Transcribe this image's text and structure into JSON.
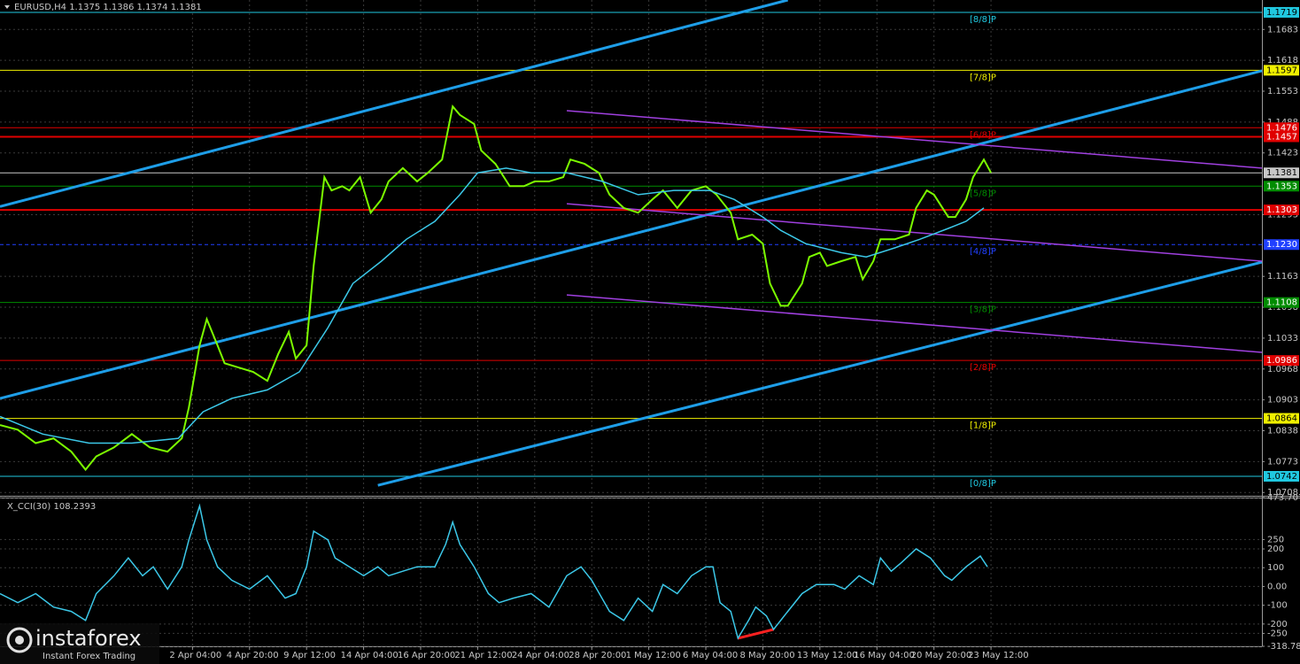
{
  "chart_data": [
    {
      "type": "line",
      "title": "EURUSD,H4  1.1375 1.1386 1.1374 1.1381",
      "xlim": [
        0,
        354
      ],
      "ylim": [
        1.0701,
        1.1745
      ],
      "grid": true,
      "xticks": [
        {
          "value": 54,
          "label": "2 Apr 04:00"
        },
        {
          "value": 70,
          "label": "4 Apr 20:00"
        },
        {
          "value": 86,
          "label": "9 Apr 12:00"
        },
        {
          "value": 102,
          "label": "14 Apr 04:00"
        },
        {
          "value": 118,
          "label": "16 Apr 20:00"
        },
        {
          "value": 134,
          "label": "21 Apr 12:00"
        },
        {
          "value": 150,
          "label": "24 Apr 04:00"
        },
        {
          "value": 166,
          "label": "28 Apr 20:00"
        },
        {
          "value": 182,
          "label": "1 May 12:00"
        },
        {
          "value": 198,
          "label": "6 May 04:00"
        },
        {
          "value": 214,
          "label": "8 May 20:00"
        },
        {
          "value": 230,
          "label": "13 May 12:00"
        },
        {
          "value": 246,
          "label": "16 May 04:00"
        },
        {
          "value": 262,
          "label": "20 May 20:00"
        },
        {
          "value": 278,
          "label": "23 May 12:00"
        }
      ],
      "yticks": [
        1.1683,
        1.1618,
        1.1553,
        1.1488,
        1.1423,
        1.1293,
        1.1163,
        1.1098,
        1.1033,
        1.0968,
        1.0903,
        1.0838,
        1.0773,
        1.0708
      ],
      "series": [
        {
          "color": "#7cfc00",
          "x": [
            0,
            5,
            10,
            15,
            20,
            24,
            27,
            32,
            37,
            42,
            47,
            51,
            53,
            56,
            58,
            61,
            63,
            67,
            71,
            75,
            78,
            81,
            83,
            86,
            88,
            91,
            93,
            96,
            98,
            101,
            104,
            107,
            109,
            113,
            117,
            120,
            124,
            127,
            129,
            133,
            135,
            139,
            143,
            147,
            150,
            154,
            158,
            160,
            164,
            168,
            171,
            175,
            179,
            183,
            186,
            190,
            194,
            198,
            201,
            205,
            207,
            211,
            214,
            216,
            219,
            221,
            225,
            227,
            230,
            232,
            236,
            240,
            242,
            245,
            247,
            251,
            255,
            257,
            260,
            262,
            266,
            268,
            271,
            273,
            276,
            278
          ],
          "values": [
            1.085,
            1.084,
            1.0812,
            1.0822,
            1.0794,
            1.0756,
            1.0784,
            1.0803,
            1.0831,
            1.0803,
            1.0794,
            1.0822,
            1.0887,
            1.1018,
            1.1073,
            1.1018,
            1.098,
            1.0971,
            1.0962,
            1.0943,
            1.0999,
            1.1046,
            1.099,
            1.1018,
            1.1185,
            1.1372,
            1.1344,
            1.1353,
            1.1344,
            1.1372,
            1.1297,
            1.1325,
            1.1363,
            1.1391,
            1.1363,
            1.1381,
            1.1409,
            1.1521,
            1.1503,
            1.1484,
            1.1428,
            1.14,
            1.1353,
            1.1353,
            1.1363,
            1.1363,
            1.1372,
            1.1409,
            1.14,
            1.1381,
            1.1335,
            1.1307,
            1.1297,
            1.1325,
            1.1344,
            1.1307,
            1.1344,
            1.1353,
            1.1335,
            1.1297,
            1.1241,
            1.1251,
            1.1232,
            1.1148,
            1.1101,
            1.1101,
            1.1148,
            1.1204,
            1.1213,
            1.1185,
            1.1195,
            1.1204,
            1.1157,
            1.1195,
            1.1241,
            1.1241,
            1.1251,
            1.1307,
            1.1344,
            1.1335,
            1.1288,
            1.1288,
            1.1325,
            1.1372,
            1.1409,
            1.1381
          ]
        },
        {
          "color": "#3cc8e8",
          "x": [
            0,
            12,
            25,
            37,
            50,
            57,
            65,
            75,
            84,
            92,
            99,
            107,
            114,
            122,
            129,
            134,
            142,
            149,
            159,
            169,
            179,
            189,
            199,
            206,
            214,
            219,
            226,
            236,
            243,
            251,
            258,
            266,
            271,
            276
          ],
          "values": [
            1.0868,
            1.0831,
            1.0812,
            1.0812,
            1.0822,
            1.0878,
            1.0906,
            1.0924,
            1.0962,
            1.1055,
            1.1148,
            1.1195,
            1.1241,
            1.1279,
            1.1335,
            1.1381,
            1.1391,
            1.1381,
            1.1381,
            1.1363,
            1.1335,
            1.1344,
            1.1344,
            1.1325,
            1.1288,
            1.126,
            1.1232,
            1.1213,
            1.1204,
            1.1223,
            1.1241,
            1.1264,
            1.1279,
            1.1307
          ]
        }
      ],
      "trendlines": [
        {
          "color": "#1e9ee8",
          "x": [
            0,
            221
          ],
          "y": [
            1.131,
            1.1745
          ]
        },
        {
          "color": "#1e9ee8",
          "x": [
            0,
            354
          ],
          "y": [
            1.0906,
            1.1596
          ]
        },
        {
          "color": "#1e9ee8",
          "x": [
            106,
            354
          ],
          "y": [
            1.0723,
            1.1193
          ]
        },
        {
          "color": "#a040e0",
          "x": [
            159,
            354
          ],
          "y": [
            1.1512,
            1.1391
          ]
        },
        {
          "color": "#a040e0",
          "x": [
            159,
            354
          ],
          "y": [
            1.1316,
            1.1195
          ]
        },
        {
          "color": "#a040e0",
          "x": [
            159,
            354
          ],
          "y": [
            1.1124,
            1.1003
          ]
        }
      ],
      "levels": [
        {
          "name": "[8/8]P",
          "value": 1.1719,
          "value_label": "1.1719",
          "color": "#20c8e0",
          "style": "solid"
        },
        {
          "name": "[7/8]P",
          "value": 1.1597,
          "value_label": "1.1597",
          "color": "#f0f000",
          "style": "solid"
        },
        {
          "name": "[6/8]P",
          "value": 1.1476,
          "value_label": "1.1476",
          "color": "#e00000",
          "style": "solid"
        },
        {
          "value": 1.1457,
          "value_label": "1.1457",
          "color": "#e00000",
          "style": "thick"
        },
        {
          "value": 1.1381,
          "value_label": "1.1381",
          "color": "#c8c8c8",
          "style": "solid"
        },
        {
          "name": "[5/8]P",
          "value": 1.1353,
          "value_label": "1.1353",
          "color": "#008c00",
          "style": "solid"
        },
        {
          "value": 1.1303,
          "value_label": "1.1303",
          "color": "#e00000",
          "style": "thick"
        },
        {
          "name": "[4/8]P",
          "value": 1.123,
          "value_label": "1.1230",
          "color": "#2040ff",
          "style": "dashed"
        },
        {
          "name": "[3/8]P",
          "value": 1.1108,
          "value_label": "1.1108",
          "color": "#008c00",
          "style": "solid"
        },
        {
          "name": "[2/8]P",
          "value": 1.0986,
          "value_label": "1.0986",
          "color": "#e00000",
          "style": "solid"
        },
        {
          "name": "[1/8]P",
          "value": 1.0864,
          "value_label": "1.0864",
          "color": "#f0f000",
          "style": "solid"
        },
        {
          "name": "[0/8]P",
          "value": 1.0742,
          "value_label": "1.0742",
          "color": "#20c8e0",
          "style": "solid"
        }
      ]
    },
    {
      "type": "line",
      "title": "X_CCI(30) 108.2393",
      "xlim": [
        0,
        354
      ],
      "ylim": [
        -318.786,
        473.707
      ],
      "grid": true,
      "yticks": [
        473.707,
        250,
        200,
        100,
        {
          "value": 0,
          "label": "0.00"
        },
        -100,
        -200,
        -250,
        -318.786
      ],
      "series": [
        {
          "color": "#3cc8e8",
          "x": [
            0,
            5,
            10,
            15,
            20,
            24,
            27,
            32,
            36,
            40,
            43,
            47,
            51,
            53,
            56,
            58,
            61,
            65,
            70,
            75,
            80,
            83,
            86,
            88,
            92,
            94,
            98,
            102,
            106,
            109,
            113,
            117,
            122,
            125,
            127,
            129,
            133,
            137,
            140,
            144,
            149,
            154,
            159,
            163,
            166,
            171,
            175,
            179,
            183,
            186,
            190,
            194,
            198,
            200,
            202,
            205,
            207,
            210,
            212,
            215,
            217,
            221,
            225,
            229,
            234,
            237,
            241,
            245,
            247,
            250,
            253,
            257,
            261,
            265,
            267,
            271,
            275,
            277
          ],
          "values": [
            -38,
            -86,
            -38,
            -110,
            -133,
            -181,
            -38,
            57,
            152,
            57,
            105,
            -14,
            105,
            248,
            429,
            248,
            105,
            33,
            -14,
            57,
            -62,
            -38,
            105,
            295,
            248,
            152,
            105,
            57,
            105,
            57,
            81,
            105,
            105,
            224,
            343,
            224,
            105,
            -38,
            -86,
            -62,
            -38,
            -110,
            57,
            105,
            33,
            -133,
            -181,
            -62,
            -133,
            10,
            -38,
            57,
            105,
            105,
            -86,
            -133,
            -276,
            -181,
            -110,
            -157,
            -229,
            -133,
            -38,
            10,
            10,
            -14,
            57,
            10,
            152,
            81,
            129,
            200,
            152,
            57,
            33,
            105,
            162,
            105
          ]
        }
      ],
      "trendlines": [
        {
          "color": "#ff2020",
          "x": [
            207,
            217
          ],
          "y": [
            -276,
            -229
          ]
        }
      ]
    }
  ],
  "watermark": {
    "brand": "instaforex",
    "tagline": "Instant Forex Trading"
  }
}
